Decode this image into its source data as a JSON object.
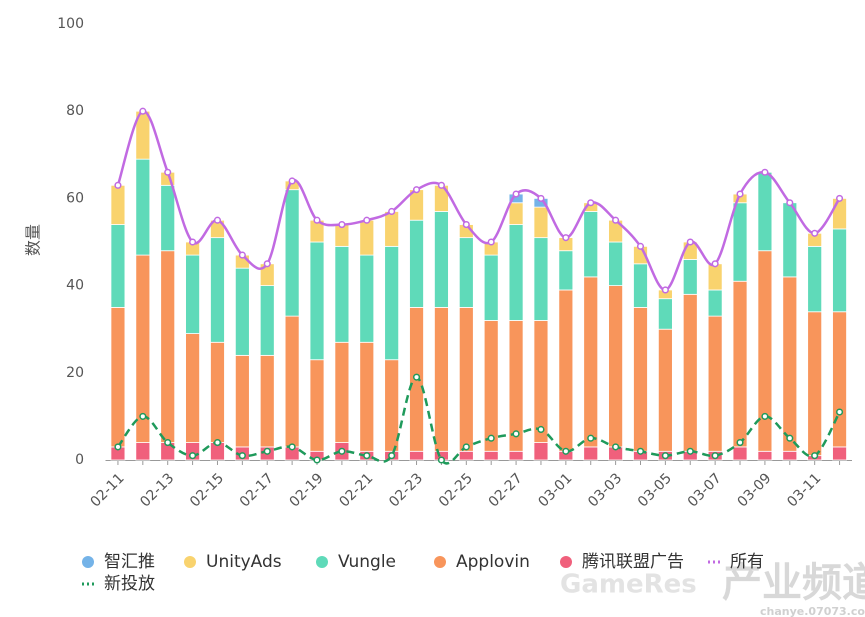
{
  "chart_data": {
    "type": "bar",
    "stacked": true,
    "y_label": "数量",
    "categories": [
      "02-11",
      null,
      "02-13",
      null,
      "02-15",
      null,
      "02-17",
      null,
      "02-19",
      null,
      "02-21",
      null,
      "02-23",
      null,
      "02-25",
      null,
      "02-27",
      null,
      "03-01",
      null,
      "03-03",
      null,
      "03-05",
      null,
      "03-07",
      null,
      "03-09",
      null,
      "03-11",
      null
    ],
    "ylim": [
      0,
      100
    ],
    "yticks": [
      0,
      20,
      40,
      60,
      80,
      100
    ],
    "grid": false,
    "series": [
      {
        "name": "智汇推",
        "color": "#74b3e8",
        "values": [
          0,
          0,
          0,
          0,
          0,
          0,
          0,
          0,
          0,
          0,
          0,
          0,
          0,
          0,
          0,
          0,
          2,
          2,
          0,
          0,
          0,
          0,
          0,
          0,
          0,
          0,
          0,
          0,
          0,
          0
        ]
      },
      {
        "name": "UnityAds",
        "color": "#f9d36e",
        "values": [
          9,
          11,
          3,
          3,
          4,
          3,
          5,
          2,
          5,
          5,
          8,
          8,
          7,
          6,
          3,
          3,
          5,
          7,
          3,
          2,
          5,
          4,
          2,
          4,
          6,
          2,
          0,
          0,
          3,
          7
        ]
      },
      {
        "name": "Vungle",
        "color": "#5fdab9",
        "values": [
          19,
          22,
          15,
          18,
          24,
          20,
          16,
          29,
          27,
          22,
          20,
          26,
          20,
          22,
          16,
          15,
          22,
          19,
          9,
          15,
          10,
          10,
          7,
          8,
          6,
          18,
          18,
          17,
          15,
          19
        ]
      },
      {
        "name": "Applovin",
        "color": "#f8955b",
        "values": [
          32,
          43,
          44,
          25,
          23,
          21,
          21,
          30,
          21,
          23,
          25,
          21,
          33,
          33,
          33,
          30,
          30,
          28,
          37,
          39,
          37,
          33,
          28,
          36,
          31,
          38,
          46,
          40,
          33,
          31
        ]
      },
      {
        "name": "腾讯联盟广告",
        "color": "#f0607c",
        "values": [
          3,
          4,
          4,
          4,
          4,
          3,
          3,
          3,
          2,
          4,
          2,
          2,
          2,
          2,
          2,
          2,
          2,
          4,
          2,
          3,
          3,
          2,
          2,
          2,
          2,
          3,
          2,
          2,
          1,
          3
        ]
      },
      {
        "name": "所有",
        "type": "line",
        "color": "#c16ae2",
        "values": [
          63,
          80,
          66,
          50,
          55,
          47,
          45,
          64,
          55,
          54,
          55,
          57,
          62,
          63,
          54,
          50,
          61,
          60,
          51,
          59,
          55,
          49,
          39,
          50,
          45,
          61,
          66,
          59,
          52,
          60
        ]
      },
      {
        "name": "新投放",
        "type": "line",
        "color": "#1f9a5b",
        "dashed": true,
        "values": [
          3,
          10,
          4,
          1,
          4,
          1,
          2,
          3,
          0,
          2,
          1,
          1,
          19,
          0,
          3,
          5,
          6,
          7,
          2,
          5,
          3,
          2,
          1,
          2,
          1,
          4,
          10,
          5,
          1,
          11
        ]
      }
    ],
    "watermark": [
      "GameRes",
      "产业频道",
      "chanye.07073.com"
    ]
  }
}
